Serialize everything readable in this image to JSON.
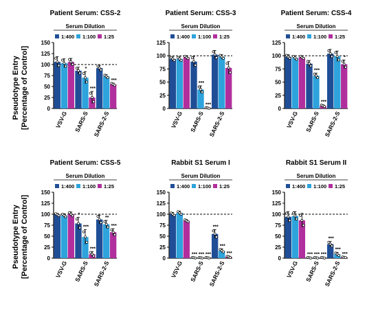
{
  "colors": {
    "dil_1_400": "#1f4e96",
    "dil_1_100": "#2ea3dc",
    "dil_1_25": "#b12f9d",
    "axis": "#000000",
    "reference_line": "#000000"
  },
  "y_axis_label_line1": "Pseudotype Entry",
  "y_axis_label_line2": "[Percentage of Control]",
  "chart_data": [
    {
      "type": "bar",
      "title": "Patient Serum: CSS-2",
      "legend_title": "Serum Dilution",
      "legend": [
        "1:400",
        "1:100",
        "1:25"
      ],
      "categories": [
        "VSV-G",
        "SARS-S",
        "SARS-2-S"
      ],
      "ylim": [
        0,
        150
      ],
      "yticks": [
        "0",
        "25",
        "50",
        "75",
        "100",
        "125",
        "150"
      ],
      "reference_line": 100,
      "series": [
        {
          "name": "1:400",
          "values": [
            106,
            86,
            92
          ],
          "errors": [
            12,
            8,
            6
          ],
          "stars": [
            "",
            "",
            ""
          ]
        },
        {
          "name": "1:100",
          "values": [
            103,
            70,
            73
          ],
          "errors": [
            10,
            14,
            4
          ],
          "stars": [
            "",
            "*",
            ""
          ]
        },
        {
          "name": "1:25",
          "values": [
            106,
            25,
            55
          ],
          "errors": [
            8,
            14,
            3
          ],
          "stars": [
            "",
            "***",
            "***"
          ]
        }
      ]
    },
    {
      "type": "bar",
      "title": "Patient Serum: CSS-3",
      "legend_title": "Serum Dilution",
      "legend": [
        "1:400",
        "1:100",
        "1:25"
      ],
      "categories": [
        "VSV-G",
        "SARS-S",
        "SARS-2-S"
      ],
      "ylim": [
        0,
        125
      ],
      "yticks": [
        "0",
        "25",
        "50",
        "75",
        "100",
        "125"
      ],
      "reference_line": 100,
      "series": [
        {
          "name": "1:400",
          "values": [
            94,
            89,
            102
          ],
          "errors": [
            4,
            10,
            8
          ],
          "stars": [
            "",
            "",
            ""
          ]
        },
        {
          "name": "1:100",
          "values": [
            94,
            36,
            98
          ],
          "errors": [
            4,
            7,
            4
          ],
          "stars": [
            "",
            "***",
            ""
          ]
        },
        {
          "name": "1:25",
          "values": [
            97,
            1,
            77
          ],
          "errors": [
            3,
            1,
            12
          ],
          "stars": [
            "",
            "***",
            ""
          ]
        }
      ]
    },
    {
      "type": "bar",
      "title": "Patient Serum: CSS-4",
      "legend_title": "Serum Dilution",
      "legend": [
        "1:400",
        "1:100",
        "1:25"
      ],
      "categories": [
        "VSV-G",
        "SARS-S",
        "SARS-2-S"
      ],
      "ylim": [
        0,
        125
      ],
      "yticks": [
        "0",
        "25",
        "50",
        "75",
        "100",
        "125"
      ],
      "reference_line": 100,
      "series": [
        {
          "name": "1:400",
          "values": [
            98,
            85,
            104
          ],
          "errors": [
            4,
            6,
            8
          ],
          "stars": [
            "",
            "",
            ""
          ]
        },
        {
          "name": "1:100",
          "values": [
            96,
            62,
            99
          ],
          "errors": [
            4,
            5,
            10
          ],
          "stars": [
            "",
            "***",
            ""
          ]
        },
        {
          "name": "1:25",
          "values": [
            97,
            5,
            84
          ],
          "errors": [
            3,
            2,
            8
          ],
          "stars": [
            "",
            "***",
            "*"
          ]
        }
      ]
    },
    {
      "type": "bar",
      "title": "Patient Serum: CSS-5",
      "legend_title": "Serum Dilution",
      "legend": [
        "1:400",
        "1:100",
        "1:25"
      ],
      "categories": [
        "VSV-G",
        "SARS-S",
        "SARS-2-S"
      ],
      "ylim": [
        0,
        150
      ],
      "yticks": [
        "0",
        "25",
        "50",
        "75",
        "100",
        "125",
        "150"
      ],
      "reference_line": 100,
      "series": [
        {
          "name": "1:400",
          "values": [
            99,
            79,
            88
          ],
          "errors": [
            3,
            14,
            10
          ],
          "stars": [
            "",
            "*",
            ""
          ]
        },
        {
          "name": "1:100",
          "values": [
            97,
            48,
            77
          ],
          "errors": [
            4,
            17,
            9
          ],
          "stars": [
            "",
            "***",
            "**"
          ]
        },
        {
          "name": "1:25",
          "values": [
            100,
            9,
            59
          ],
          "errors": [
            5,
            6,
            8
          ],
          "stars": [
            "",
            "***",
            "***"
          ]
        }
      ]
    },
    {
      "type": "bar",
      "title": "Rabbit S1 Serum I",
      "legend_title": "Serum Dilution",
      "legend": [
        "1:400",
        "1:100",
        "1:25"
      ],
      "categories": [
        "VSV-G",
        "SARS-S",
        "SARS-2-S"
      ],
      "ylim": [
        0,
        150
      ],
      "yticks": [
        "0",
        "25",
        "50",
        "75",
        "100",
        "125",
        "150"
      ],
      "reference_line": 100,
      "series": [
        {
          "name": "1:400",
          "values": [
            100,
            1,
            55
          ],
          "errors": [
            4,
            1,
            10
          ],
          "stars": [
            "",
            "***",
            "***"
          ]
        },
        {
          "name": "1:100",
          "values": [
            103,
            1,
            17
          ],
          "errors": [
            4,
            1,
            4
          ],
          "stars": [
            "",
            "***",
            "***"
          ]
        },
        {
          "name": "1:25",
          "values": [
            85,
            1,
            3
          ],
          "errors": [
            3,
            1,
            2
          ],
          "stars": [
            "",
            "***",
            "***"
          ]
        }
      ]
    },
    {
      "type": "bar",
      "title": "Rabbit S1 Serum II",
      "legend_title": "Serum Dilution",
      "legend": [
        "1:400",
        "1:100",
        "1:25"
      ],
      "categories": [
        "VSV-G",
        "SARS-S",
        "SARS-2-S"
      ],
      "ylim": [
        0,
        150
      ],
      "yticks": [
        "0",
        "25",
        "50",
        "75",
        "100",
        "125",
        "150"
      ],
      "reference_line": 100,
      "series": [
        {
          "name": "1:400",
          "values": [
            94,
            1,
            32
          ],
          "errors": [
            12,
            1,
            6
          ],
          "stars": [
            "",
            "***",
            "***"
          ]
        },
        {
          "name": "1:100",
          "values": [
            96,
            1,
            9
          ],
          "errors": [
            10,
            1,
            4
          ],
          "stars": [
            "",
            "***",
            "***"
          ]
        },
        {
          "name": "1:25",
          "values": [
            86,
            1,
            2
          ],
          "errors": [
            16,
            1,
            1
          ],
          "stars": [
            "",
            "***",
            "***"
          ]
        }
      ]
    }
  ]
}
